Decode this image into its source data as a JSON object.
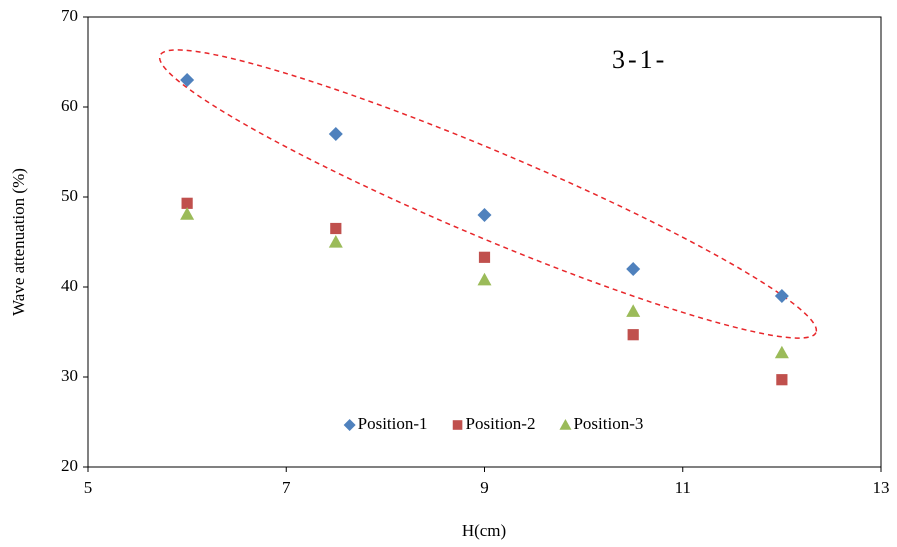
{
  "chart_data": {
    "type": "scatter",
    "x_label": "H(cm)",
    "y_label": "Wave attenuation (%)",
    "annotation": "3-1-",
    "x": [
      6,
      7.5,
      9,
      10.5,
      12
    ],
    "series": [
      {
        "name": "Position-1",
        "color": "#4f81bd",
        "marker": "diamond",
        "values": [
          63,
          57,
          48,
          42,
          39
        ]
      },
      {
        "name": "Position-2",
        "color": "#c0504d",
        "marker": "square",
        "values": [
          49.3,
          46.5,
          43.3,
          34.7,
          29.7
        ]
      },
      {
        "name": "Position-3",
        "color": "#9bbb59",
        "marker": "triangle",
        "values": [
          48.1,
          45,
          40.8,
          37.3,
          32.7
        ]
      }
    ],
    "xlim": [
      5,
      13
    ],
    "xticks": [
      5,
      7,
      9,
      11,
      13
    ],
    "ylim": [
      20,
      70
    ],
    "yticks": [
      20,
      30,
      40,
      50,
      60,
      70
    ],
    "grid": false,
    "legend": "lower center"
  }
}
